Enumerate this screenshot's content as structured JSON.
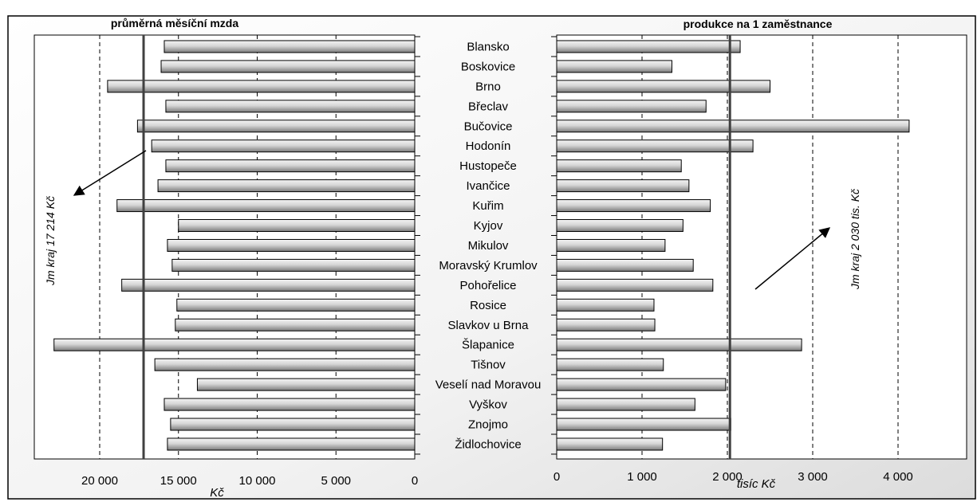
{
  "chart_data": [
    {
      "type": "bar",
      "orientation": "horizontal",
      "direction": "right-to-left",
      "title": "průměrná měsíční mzda",
      "xlabel": "Kč",
      "xlim": [
        0,
        25000
      ],
      "xticks": [
        "20 000",
        "15 000",
        "10 000",
        "5 000",
        "0"
      ],
      "xtick_values": [
        20000,
        15000,
        10000,
        5000,
        0
      ],
      "grid": "dashed vertical",
      "reference_line": {
        "value": 17214,
        "label": "Jm kraj 17 214 Kč"
      },
      "categories": [
        "Blansko",
        "Boskovice",
        "Brno",
        "Břeclav",
        "Bučovice",
        "Hodonín",
        "Hustopeče",
        "Ivančice",
        "Kuřim",
        "Kyjov",
        "Mikulov",
        "Moravský Krumlov",
        "Pohořelice",
        "Rosice",
        "Slavkov u Brna",
        "Šlapanice",
        "Tišnov",
        "Veselí nad Moravou",
        "Vyškov",
        "Znojmo",
        "Židlochovice"
      ],
      "values": [
        15900,
        16100,
        19500,
        15800,
        17600,
        16700,
        15800,
        16300,
        18900,
        15000,
        15700,
        15400,
        18600,
        15100,
        15200,
        22900,
        16500,
        13800,
        15900,
        15500,
        15700
      ]
    },
    {
      "type": "bar",
      "orientation": "horizontal",
      "title": "produkce na 1 zaměstnance",
      "xlabel": "tisíc Kč",
      "xlim": [
        0,
        4500
      ],
      "xticks": [
        "0",
        "1 000",
        "2 000",
        "3 000",
        "4 000"
      ],
      "xtick_values": [
        0,
        1000,
        2000,
        3000,
        4000
      ],
      "grid": "dashed vertical",
      "reference_line": {
        "value": 2030,
        "label": "Jm kraj 2 030 tis. Kč"
      },
      "categories": [
        "Blansko",
        "Boskovice",
        "Brno",
        "Břeclav",
        "Bučovice",
        "Hodonín",
        "Hustopeče",
        "Ivančice",
        "Kuřim",
        "Kyjov",
        "Mikulov",
        "Moravský Krumlov",
        "Pohořelice",
        "Rosice",
        "Slavkov u Brna",
        "Šlapanice",
        "Tišnov",
        "Veselí nad Moravou",
        "Vyškov",
        "Znojmo",
        "Židlochovice"
      ],
      "values": [
        2150,
        1350,
        2500,
        1750,
        4130,
        2300,
        1460,
        1550,
        1800,
        1480,
        1270,
        1600,
        1830,
        1140,
        1150,
        2870,
        1250,
        1980,
        1620,
        2040,
        1240
      ]
    }
  ]
}
